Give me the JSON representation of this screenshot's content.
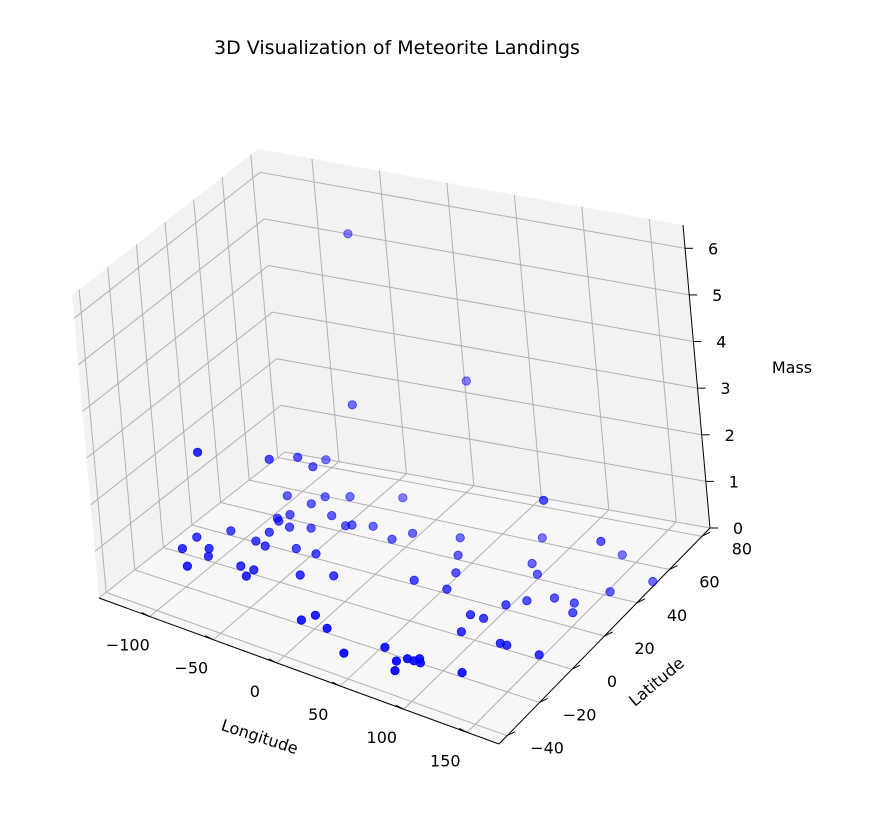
{
  "chart_data": {
    "type": "scatter",
    "title": "3D Visualization of Meteorite Landings",
    "xlabel": "Longitude",
    "ylabel": "Latitude",
    "zlabel": "Mass",
    "xlim": [
      -140,
      175
    ],
    "ylim": [
      -45,
      85
    ],
    "zlim": [
      0,
      6.5
    ],
    "xticks": [
      -100,
      -50,
      0,
      50,
      100,
      150
    ],
    "xtick_labels": [
      "−100",
      "−50",
      "0",
      "50",
      "100",
      "150"
    ],
    "yticks": [
      -40,
      -20,
      0,
      20,
      40,
      60,
      80
    ],
    "ytick_labels": [
      "−40",
      "−20",
      "0",
      "20",
      "40",
      "60",
      "80"
    ],
    "zticks": [
      0,
      1,
      2,
      3,
      4,
      5,
      6
    ],
    "ztick_labels": [
      "0",
      "1",
      "2",
      "3",
      "4",
      "5",
      "6"
    ],
    "grid": true,
    "colors": {
      "point": "#0000ff",
      "pane_left": "#f2f2f2",
      "pane_back": "#f2f2f2",
      "pane_floor": "#f7f7f7",
      "grid": "#b0b0b0"
    },
    "points": [
      {
        "x": -60,
        "y": 70,
        "z": 5.5
      },
      {
        "x": -100,
        "y": -5,
        "z": 2.5
      },
      {
        "x": 20,
        "y": 70,
        "z": 2.8
      },
      {
        "x": -50,
        "y": 55,
        "z": 2.3
      },
      {
        "x": -75,
        "y": 20,
        "z": 1.9
      },
      {
        "x": -65,
        "y": 30,
        "z": 1.75
      },
      {
        "x": -60,
        "y": 35,
        "z": 1.45
      },
      {
        "x": 130,
        "y": 25,
        "z": 2.4
      },
      {
        "x": 165,
        "y": 30,
        "z": 1.6
      },
      {
        "x": -80,
        "y": 60,
        "z": 0.8
      },
      {
        "x": -88,
        "y": 40,
        "z": 0.5
      },
      {
        "x": -75,
        "y": 30,
        "z": 0.45
      },
      {
        "x": -78,
        "y": 25,
        "z": 0.42
      },
      {
        "x": -70,
        "y": 40,
        "z": 0.45
      },
      {
        "x": -65,
        "y": 45,
        "z": 0.5
      },
      {
        "x": -80,
        "y": 20,
        "z": 0.3
      },
      {
        "x": -70,
        "y": 25,
        "z": 0.35
      },
      {
        "x": -85,
        "y": 30,
        "z": 0.3
      },
      {
        "x": -58,
        "y": 55,
        "z": 0.28
      },
      {
        "x": -55,
        "y": 40,
        "z": 0.3
      },
      {
        "x": -85,
        "y": 15,
        "z": 0.2
      },
      {
        "x": -78,
        "y": 15,
        "z": 0.15
      },
      {
        "x": -62,
        "y": 32,
        "z": 0.2
      },
      {
        "x": -45,
        "y": 40,
        "z": 0.15
      },
      {
        "x": -60,
        "y": 20,
        "z": 0.1
      },
      {
        "x": -30,
        "y": 65,
        "z": 0.15
      },
      {
        "x": -30,
        "y": 45,
        "z": 0.1
      },
      {
        "x": -40,
        "y": 40,
        "z": 0.2
      },
      {
        "x": 0,
        "y": 45,
        "z": 0.15
      },
      {
        "x": -10,
        "y": 40,
        "z": 0.1
      },
      {
        "x": -45,
        "y": 20,
        "z": 0.1
      },
      {
        "x": 30,
        "y": 50,
        "z": 0.1
      },
      {
        "x": 80,
        "y": 60,
        "z": 0.1
      },
      {
        "x": 40,
        "y": 40,
        "z": 0.1
      },
      {
        "x": 90,
        "y": 45,
        "z": 0.1
      },
      {
        "x": 100,
        "y": 40,
        "z": 0.1
      },
      {
        "x": 140,
        "y": 60,
        "z": 0.1
      },
      {
        "x": 155,
        "y": 40,
        "z": 0.1
      },
      {
        "x": 175,
        "y": 50,
        "z": 0.1
      },
      {
        "x": 50,
        "y": 30,
        "z": 0.1
      },
      {
        "x": 30,
        "y": 20,
        "z": 0.1
      },
      {
        "x": 55,
        "y": 20,
        "z": 0.1
      },
      {
        "x": 100,
        "y": 20,
        "z": 0.1
      },
      {
        "x": 110,
        "y": 25,
        "z": 0.1
      },
      {
        "x": 125,
        "y": 30,
        "z": 0.1
      },
      {
        "x": 140,
        "y": 30,
        "z": 0.1
      },
      {
        "x": 145,
        "y": 25,
        "z": 0.1
      },
      {
        "x": 85,
        "y": 10,
        "z": 0.1
      },
      {
        "x": 95,
        "y": 10,
        "z": 0.1
      },
      {
        "x": 90,
        "y": 0,
        "z": 0.1
      },
      {
        "x": 120,
        "y": 0,
        "z": 0.1
      },
      {
        "x": 125,
        "y": 0,
        "z": 0.1
      },
      {
        "x": 150,
        "y": 0,
        "z": 0.1
      },
      {
        "x": 115,
        "y": -20,
        "z": 0.1
      },
      {
        "x": -40,
        "y": 5,
        "z": 0.1
      },
      {
        "x": -20,
        "y": 10,
        "z": 0.1
      },
      {
        "x": -125,
        "y": 10,
        "z": 0.1
      },
      {
        "x": -125,
        "y": 0,
        "z": 0.1
      },
      {
        "x": -110,
        "y": 20,
        "z": 0.1
      },
      {
        "x": -110,
        "y": 5,
        "z": 0.1
      },
      {
        "x": -105,
        "y": 0,
        "z": 0.1
      },
      {
        "x": -110,
        "y": -10,
        "z": 0.1
      },
      {
        "x": -80,
        "y": 0,
        "z": 0.1
      },
      {
        "x": -70,
        "y": 0,
        "z": 0.1
      },
      {
        "x": -70,
        "y": -5,
        "z": 0.1
      },
      {
        "x": -10,
        "y": -20,
        "z": 0.1
      },
      {
        "x": -5,
        "y": -15,
        "z": 0.1
      },
      {
        "x": 10,
        "y": -20,
        "z": 0.1
      },
      {
        "x": 35,
        "y": -30,
        "z": 0.1
      },
      {
        "x": 55,
        "y": -20,
        "z": 0.1
      },
      {
        "x": 70,
        "y": -25,
        "z": 0.1
      },
      {
        "x": 75,
        "y": -22,
        "z": 0.1
      },
      {
        "x": 80,
        "y": -22,
        "z": 0.1
      },
      {
        "x": 82,
        "y": -20,
        "z": 0.1
      },
      {
        "x": 85,
        "y": -22,
        "z": 0.1
      },
      {
        "x": 75,
        "y": -30,
        "z": 0.1
      }
    ]
  }
}
